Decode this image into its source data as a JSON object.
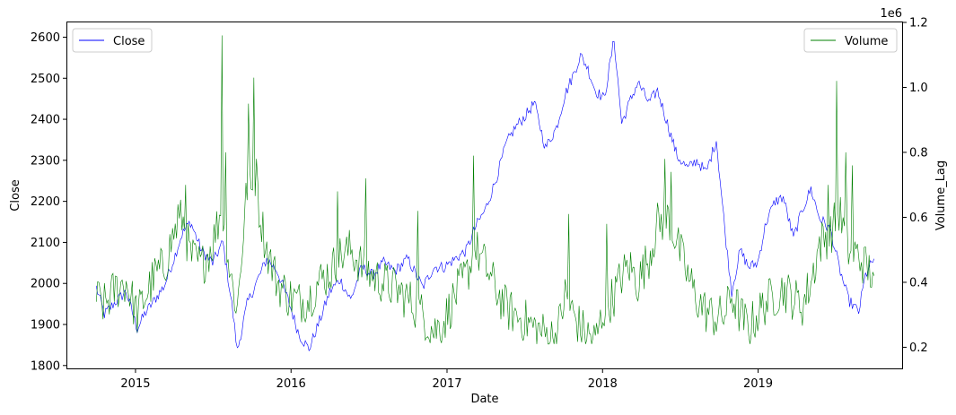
{
  "chart_data": {
    "type": "line",
    "xlabel": "Date",
    "ylabel_left": "Close",
    "ylabel_right": "Volume_Lag",
    "right_axis_multiplier": "1e6",
    "x_range": [
      "2014-07-25",
      "2019-12-05"
    ],
    "x_ticks": [
      "2015",
      "2016",
      "2017",
      "2018",
      "2019"
    ],
    "ylim_left": [
      1793,
      2636
    ],
    "yticks_left": [
      1800,
      1900,
      2000,
      2100,
      2200,
      2300,
      2400,
      2500,
      2600
    ],
    "ylim_right": [
      0.135,
      1.2
    ],
    "yticks_right": [
      0.2,
      0.4,
      0.6,
      0.8,
      1.0,
      1.2
    ],
    "grid": false,
    "legends": [
      {
        "name": "Close",
        "placement": "top-left"
      },
      {
        "name": "Volume",
        "placement": "top-right"
      }
    ],
    "series": [
      {
        "name": "Close",
        "axis": "left",
        "color": "#0000ff",
        "points": [
          [
            "2014-10-01",
            1990
          ],
          [
            "2014-10-20",
            1925
          ],
          [
            "2014-11-15",
            1955
          ],
          [
            "2014-12-10",
            1980
          ],
          [
            "2015-01-05",
            1890
          ],
          [
            "2015-01-25",
            1930
          ],
          [
            "2015-02-15",
            1960
          ],
          [
            "2015-03-10",
            1995
          ],
          [
            "2015-04-01",
            2060
          ],
          [
            "2015-04-20",
            2120
          ],
          [
            "2015-05-10",
            2150
          ],
          [
            "2015-06-05",
            2080
          ],
          [
            "2015-07-01",
            2050
          ],
          [
            "2015-07-25",
            2100
          ],
          [
            "2015-08-15",
            1950
          ],
          [
            "2015-08-28",
            1835
          ],
          [
            "2015-09-20",
            1950
          ],
          [
            "2015-10-15",
            2010
          ],
          [
            "2015-11-05",
            2060
          ],
          [
            "2015-11-30",
            2030
          ],
          [
            "2015-12-25",
            1960
          ],
          [
            "2016-01-20",
            1875
          ],
          [
            "2016-02-12",
            1840
          ],
          [
            "2016-03-05",
            1900
          ],
          [
            "2016-04-01",
            1980
          ],
          [
            "2016-04-25",
            2010
          ],
          [
            "2016-05-20",
            1960
          ],
          [
            "2016-06-15",
            2040
          ],
          [
            "2016-07-10",
            2020
          ],
          [
            "2016-08-05",
            2050
          ],
          [
            "2016-09-01",
            2030
          ],
          [
            "2016-10-01",
            2060
          ],
          [
            "2016-11-05",
            1990
          ],
          [
            "2016-12-01",
            2040
          ],
          [
            "2016-12-25",
            2040
          ],
          [
            "2017-01-20",
            2060
          ],
          [
            "2017-02-15",
            2080
          ],
          [
            "2017-03-10",
            2140
          ],
          [
            "2017-04-01",
            2180
          ],
          [
            "2017-04-25",
            2250
          ],
          [
            "2017-05-20",
            2340
          ],
          [
            "2017-06-10",
            2380
          ],
          [
            "2017-07-05",
            2410
          ],
          [
            "2017-07-25",
            2440
          ],
          [
            "2017-08-20",
            2330
          ],
          [
            "2017-09-15",
            2380
          ],
          [
            "2017-10-05",
            2460
          ],
          [
            "2017-10-25",
            2510
          ],
          [
            "2017-11-10",
            2555
          ],
          [
            "2017-11-25",
            2530
          ],
          [
            "2017-12-15",
            2470
          ],
          [
            "2018-01-05",
            2450
          ],
          [
            "2018-01-28",
            2595
          ],
          [
            "2018-02-15",
            2390
          ],
          [
            "2018-03-05",
            2440
          ],
          [
            "2018-03-25",
            2490
          ],
          [
            "2018-04-20",
            2440
          ],
          [
            "2018-05-10",
            2470
          ],
          [
            "2018-06-05",
            2380
          ],
          [
            "2018-06-25",
            2310
          ],
          [
            "2018-07-20",
            2280
          ],
          [
            "2018-08-10",
            2300
          ],
          [
            "2018-09-01",
            2270
          ],
          [
            "2018-09-25",
            2350
          ],
          [
            "2018-10-15",
            2130
          ],
          [
            "2018-10-31",
            1980
          ],
          [
            "2018-11-20",
            2080
          ],
          [
            "2018-12-10",
            2040
          ],
          [
            "2018-12-31",
            2050
          ],
          [
            "2019-01-20",
            2150
          ],
          [
            "2019-02-10",
            2200
          ],
          [
            "2019-03-01",
            2210
          ],
          [
            "2019-03-25",
            2110
          ],
          [
            "2019-04-15",
            2180
          ],
          [
            "2019-05-05",
            2230
          ],
          [
            "2019-05-25",
            2160
          ],
          [
            "2019-06-20",
            2130
          ],
          [
            "2019-07-10",
            2040
          ],
          [
            "2019-08-01",
            1960
          ],
          [
            "2019-08-25",
            1930
          ],
          [
            "2019-09-10",
            2020
          ],
          [
            "2019-09-30",
            2060
          ]
        ]
      },
      {
        "name": "Volume",
        "axis": "right",
        "color": "#008000",
        "points": [
          [
            "2014-10-01",
            0.35
          ],
          [
            "2014-10-20",
            0.33
          ],
          [
            "2014-11-15",
            0.38
          ],
          [
            "2014-12-10",
            0.4
          ],
          [
            "2015-01-05",
            0.3
          ],
          [
            "2015-01-25",
            0.36
          ],
          [
            "2015-02-15",
            0.42
          ],
          [
            "2015-03-10",
            0.45
          ],
          [
            "2015-04-01",
            0.55
          ],
          [
            "2015-04-20",
            0.6
          ],
          [
            "2015-05-10",
            0.48
          ],
          [
            "2015-06-05",
            0.45
          ],
          [
            "2015-07-01",
            0.52
          ],
          [
            "2015-07-20",
            0.62
          ],
          [
            "2015-08-15",
            0.4
          ],
          [
            "2015-08-28",
            0.32
          ],
          [
            "2015-09-20",
            0.7
          ],
          [
            "2015-10-15",
            0.65
          ],
          [
            "2015-11-05",
            0.5
          ],
          [
            "2015-11-30",
            0.4
          ],
          [
            "2015-12-25",
            0.36
          ],
          [
            "2016-01-20",
            0.34
          ],
          [
            "2016-02-12",
            0.35
          ],
          [
            "2016-03-05",
            0.4
          ],
          [
            "2016-04-01",
            0.43
          ],
          [
            "2016-04-25",
            0.48
          ],
          [
            "2016-05-20",
            0.5
          ],
          [
            "2016-06-15",
            0.45
          ],
          [
            "2016-07-10",
            0.42
          ],
          [
            "2016-08-05",
            0.4
          ],
          [
            "2016-09-01",
            0.38
          ],
          [
            "2016-10-01",
            0.35
          ],
          [
            "2016-11-05",
            0.3
          ],
          [
            "2016-12-01",
            0.25
          ],
          [
            "2016-12-25",
            0.28
          ],
          [
            "2017-01-20",
            0.36
          ],
          [
            "2017-02-15",
            0.42
          ],
          [
            "2017-03-10",
            0.5
          ],
          [
            "2017-04-01",
            0.45
          ],
          [
            "2017-04-25",
            0.38
          ],
          [
            "2017-05-20",
            0.32
          ],
          [
            "2017-06-10",
            0.3
          ],
          [
            "2017-07-05",
            0.28
          ],
          [
            "2017-07-25",
            0.26
          ],
          [
            "2017-08-20",
            0.24
          ],
          [
            "2017-09-15",
            0.23
          ],
          [
            "2017-10-05",
            0.36
          ],
          [
            "2017-10-25",
            0.3
          ],
          [
            "2017-11-10",
            0.26
          ],
          [
            "2017-11-25",
            0.24
          ],
          [
            "2017-12-15",
            0.22
          ],
          [
            "2018-01-05",
            0.32
          ],
          [
            "2018-01-28",
            0.36
          ],
          [
            "2018-02-15",
            0.42
          ],
          [
            "2018-03-05",
            0.45
          ],
          [
            "2018-03-25",
            0.4
          ],
          [
            "2018-04-20",
            0.48
          ],
          [
            "2018-05-10",
            0.58
          ],
          [
            "2018-06-05",
            0.6
          ],
          [
            "2018-06-25",
            0.52
          ],
          [
            "2018-07-20",
            0.42
          ],
          [
            "2018-08-10",
            0.35
          ],
          [
            "2018-09-01",
            0.31
          ],
          [
            "2018-09-25",
            0.29
          ],
          [
            "2018-10-15",
            0.3
          ],
          [
            "2018-10-31",
            0.36
          ],
          [
            "2018-11-20",
            0.3
          ],
          [
            "2018-12-10",
            0.26
          ],
          [
            "2018-12-31",
            0.3
          ],
          [
            "2019-01-20",
            0.34
          ],
          [
            "2019-02-10",
            0.36
          ],
          [
            "2019-03-01",
            0.38
          ],
          [
            "2019-03-25",
            0.35
          ],
          [
            "2019-04-15",
            0.33
          ],
          [
            "2019-05-05",
            0.4
          ],
          [
            "2019-05-25",
            0.52
          ],
          [
            "2019-06-20",
            0.55
          ],
          [
            "2019-07-10",
            0.62
          ],
          [
            "2019-08-01",
            0.5
          ],
          [
            "2019-08-25",
            0.48
          ],
          [
            "2019-09-10",
            0.45
          ],
          [
            "2019-09-30",
            0.42
          ]
        ],
        "spikes": [
          [
            "2015-04-12",
            0.64
          ],
          [
            "2015-04-28",
            0.7
          ],
          [
            "2015-07-24",
            1.16
          ],
          [
            "2015-08-02",
            0.8
          ],
          [
            "2015-09-22",
            0.95
          ],
          [
            "2015-10-05",
            1.03
          ],
          [
            "2015-10-12",
            0.78
          ],
          [
            "2016-04-20",
            0.68
          ],
          [
            "2016-06-25",
            0.72
          ],
          [
            "2016-10-25",
            0.62
          ],
          [
            "2017-03-05",
            0.79
          ],
          [
            "2017-10-15",
            0.61
          ],
          [
            "2018-01-10",
            0.58
          ],
          [
            "2018-05-28",
            0.78
          ],
          [
            "2018-06-10",
            0.74
          ],
          [
            "2019-06-15",
            0.7
          ],
          [
            "2019-07-05",
            1.02
          ],
          [
            "2019-07-25",
            0.8
          ],
          [
            "2019-08-10",
            0.76
          ]
        ]
      }
    ]
  }
}
